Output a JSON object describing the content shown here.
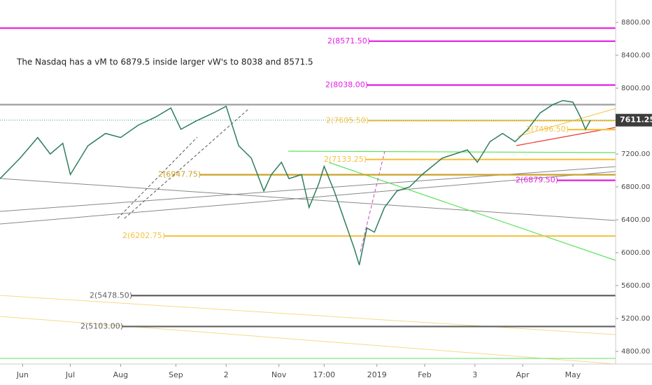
{
  "chart_data": {
    "type": "line",
    "annotation": "The Nasdaq has a vM to 6879.5 inside larger vW's to 8038 and 8571.5",
    "xlim": [
      0,
      245
    ],
    "ylim": [
      4647,
      9072
    ],
    "xticks": [
      {
        "value": 9,
        "label": "Jun"
      },
      {
        "value": 28,
        "label": "Jul"
      },
      {
        "value": 48,
        "label": "Aug"
      },
      {
        "value": 70,
        "label": "Sep"
      },
      {
        "value": 90,
        "label": "2"
      },
      {
        "value": 111,
        "label": "Nov"
      },
      {
        "value": 129,
        "label": "17:00"
      },
      {
        "value": 150,
        "label": "2019"
      },
      {
        "value": 169,
        "label": "Feb"
      },
      {
        "value": 189,
        "label": "3"
      },
      {
        "value": 208,
        "label": "Apr"
      },
      {
        "value": 228,
        "label": "May"
      }
    ],
    "yticks": [
      {
        "value": 4800,
        "label": "4800.00"
      },
      {
        "value": 5200,
        "label": "5200.00"
      },
      {
        "value": 5600,
        "label": "5600.00"
      },
      {
        "value": 6000,
        "label": "6000.00"
      },
      {
        "value": 6400,
        "label": "6400.00"
      },
      {
        "value": 6800,
        "label": "6800.00"
      },
      {
        "value": 7200,
        "label": "7200.00"
      },
      {
        "value": 7600,
        "label": "7600.00"
      },
      {
        "value": 8000,
        "label": "8000.00"
      },
      {
        "value": 8400,
        "label": "8400.00"
      },
      {
        "value": 8800,
        "label": "8800.00"
      }
    ],
    "series": [
      {
        "color": "#2e7d5b",
        "x": [
          0,
          8,
          15,
          20,
          25,
          28,
          35,
          42,
          48,
          55,
          62,
          68,
          72,
          78,
          85,
          90,
          95,
          100,
          105,
          108,
          112,
          115,
          120,
          123,
          127,
          129,
          133,
          137,
          141,
          143,
          146,
          149,
          153,
          158,
          163,
          168,
          172,
          176,
          181,
          186,
          190,
          195,
          200,
          205,
          210,
          215,
          220,
          224,
          228,
          231,
          233,
          235
        ],
        "values": [
          6900,
          7150,
          7400,
          7200,
          7330,
          6950,
          7300,
          7450,
          7400,
          7550,
          7650,
          7760,
          7500,
          7600,
          7700,
          7780,
          7300,
          7150,
          6750,
          6950,
          7100,
          6900,
          6950,
          6550,
          6850,
          7050,
          6750,
          6400,
          6050,
          5850,
          6300,
          6250,
          6550,
          6750,
          6800,
          6950,
          7050,
          7150,
          7200,
          7250,
          7100,
          7350,
          7450,
          7350,
          7500,
          7700,
          7800,
          7850,
          7830,
          7650,
          7500,
          7611.25
        ]
      }
    ],
    "levels": [
      {
        "value": 8730,
        "color": "#e31ee3"
      },
      {
        "value": 8571.5,
        "color": "#e31ee3",
        "label": "2(8571.50)"
      },
      {
        "value": 8038,
        "color": "#e31ee3",
        "label": "2(8038.00)"
      },
      {
        "value": 7800,
        "color": "#9e9e9e"
      },
      {
        "value": 7605.5,
        "color": "#f5c242",
        "label": "2(7605.50)"
      },
      {
        "value": 7496.5,
        "color": "#f5c242",
        "label": "2(7496.50)"
      },
      {
        "value": 7133.25,
        "color": "#f5c242",
        "label": "2(7133.25)"
      },
      {
        "value": 6947.75,
        "color": "#c9a227",
        "label": "2(6947.75)"
      },
      {
        "value": 6879.5,
        "color": "#e31ee3",
        "label": "2(6879.50)"
      },
      {
        "value": 6202.75,
        "color": "#f5c242",
        "label": "2(6202.75)"
      },
      {
        "value": 5478.5,
        "color": "#616161",
        "label": "2(5478.50)"
      },
      {
        "value": 5103,
        "color": "#616161",
        "label": "2(5103.00)"
      }
    ]
  }
}
